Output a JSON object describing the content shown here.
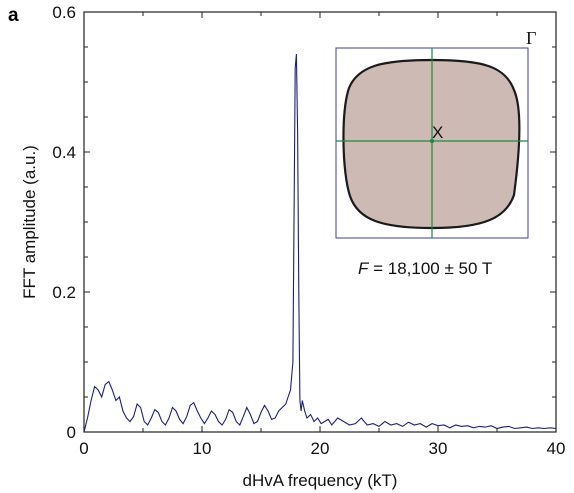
{
  "panel_label": "a",
  "chart_data": {
    "type": "line",
    "title": "",
    "xlabel": "dHvA frequency (kT)",
    "ylabel": "FFT amplitude (a.u.)",
    "xlim": [
      0,
      40
    ],
    "ylim": [
      0,
      0.6
    ],
    "xticks": [
      0,
      10,
      20,
      30,
      40
    ],
    "yticks": [
      0,
      0.2,
      0.4,
      0.6
    ],
    "ytick_labels": [
      "0",
      "0.2",
      "0.4",
      "0.6"
    ],
    "grid": false,
    "series": [
      {
        "color": "#1c1f7a",
        "x": [
          0,
          0.3,
          0.6,
          0.9,
          1.2,
          1.5,
          1.8,
          2.1,
          2.4,
          2.7,
          3.0,
          3.3,
          3.6,
          3.9,
          4.2,
          4.5,
          4.8,
          5.1,
          5.4,
          5.7,
          6.0,
          6.3,
          6.6,
          6.9,
          7.2,
          7.5,
          7.8,
          8.1,
          8.4,
          8.7,
          9.0,
          9.3,
          9.6,
          9.9,
          10.2,
          10.5,
          10.8,
          11.1,
          11.4,
          11.7,
          12.0,
          12.3,
          12.6,
          12.9,
          13.2,
          13.5,
          13.8,
          14.1,
          14.4,
          14.7,
          15.0,
          15.3,
          15.6,
          15.9,
          16.2,
          16.5,
          16.8,
          17.1,
          17.3,
          17.5,
          17.7,
          17.8,
          17.9,
          18.0,
          18.1,
          18.2,
          18.3,
          18.4,
          18.5,
          18.7,
          18.9,
          19.2,
          19.5,
          19.8,
          20.1,
          20.4,
          20.7,
          21.0,
          21.5,
          22.0,
          22.5,
          23.0,
          23.5,
          24.0,
          24.5,
          25.0,
          25.5,
          26.0,
          26.5,
          27.0,
          27.5,
          28.0,
          28.5,
          29.0,
          29.5,
          30.0,
          30.5,
          31.0,
          31.5,
          32.0,
          32.5,
          33.0,
          33.5,
          34.0,
          34.5,
          35.0,
          35.5,
          36.0,
          36.5,
          37.0,
          37.5,
          38.0,
          38.5,
          39.0,
          39.5,
          40.0
        ],
        "y": [
          0.0,
          0.02,
          0.045,
          0.065,
          0.06,
          0.05,
          0.068,
          0.072,
          0.06,
          0.045,
          0.05,
          0.03,
          0.02,
          0.015,
          0.022,
          0.04,
          0.035,
          0.015,
          0.01,
          0.02,
          0.032,
          0.028,
          0.015,
          0.01,
          0.02,
          0.035,
          0.03,
          0.018,
          0.012,
          0.022,
          0.038,
          0.042,
          0.03,
          0.02,
          0.012,
          0.02,
          0.03,
          0.025,
          0.015,
          0.01,
          0.018,
          0.032,
          0.028,
          0.015,
          0.01,
          0.022,
          0.035,
          0.025,
          0.012,
          0.015,
          0.028,
          0.038,
          0.03,
          0.018,
          0.02,
          0.03,
          0.035,
          0.04,
          0.05,
          0.06,
          0.1,
          0.3,
          0.52,
          0.54,
          0.43,
          0.2,
          0.045,
          0.03,
          0.045,
          0.03,
          0.02,
          0.025,
          0.015,
          0.02,
          0.012,
          0.015,
          0.018,
          0.01,
          0.02,
          0.015,
          0.01,
          0.012,
          0.02,
          0.01,
          0.012,
          0.008,
          0.015,
          0.01,
          0.012,
          0.008,
          0.014,
          0.01,
          0.012,
          0.007,
          0.012,
          0.009,
          0.01,
          0.006,
          0.01,
          0.008,
          0.009,
          0.006,
          0.008,
          0.007,
          0.009,
          0.005,
          0.007,
          0.008,
          0.005,
          0.006,
          0.007,
          0.005,
          0.006,
          0.005,
          0.006,
          0.005
        ]
      }
    ],
    "inset": {
      "gamma_label": "Γ",
      "point_label": "X",
      "annotation_var": "F",
      "annotation_value": " = 18,100 ± 50 T",
      "fill_color": "#cdbab5",
      "outline_color": "#222222",
      "frame_color": "#3b3f8c",
      "crosshair_color": "#1e8a3e"
    }
  }
}
